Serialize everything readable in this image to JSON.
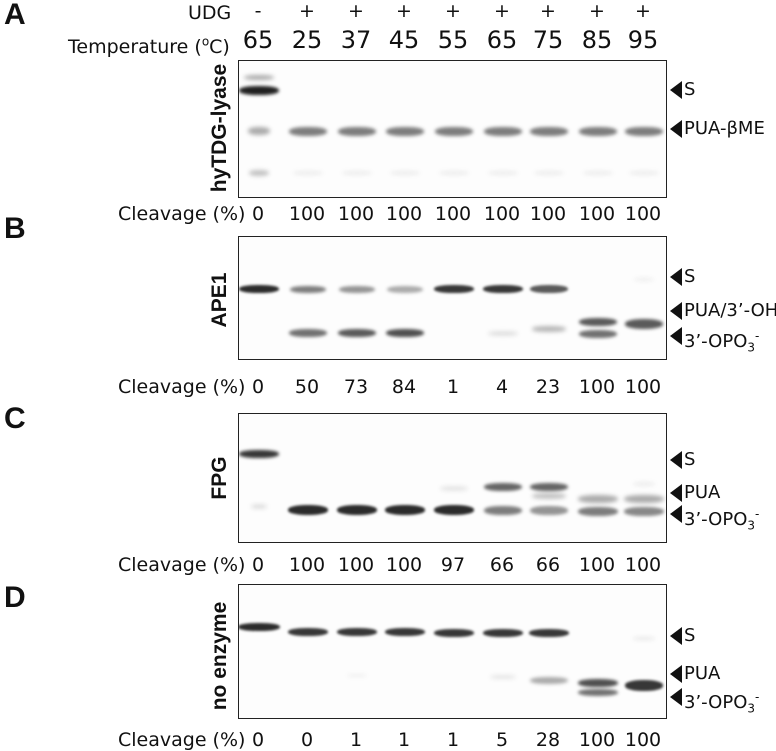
{
  "panel_letters": [
    "A",
    "B",
    "C",
    "D"
  ],
  "header": {
    "udg_label": "UDG",
    "udg_values": [
      "-",
      "+",
      "+",
      "+",
      "+",
      "+",
      "+",
      "+",
      "+"
    ],
    "temp_label": "Temperature (°C)",
    "temperatures": [
      "65",
      "25",
      "37",
      "45",
      "55",
      "65",
      "75",
      "85",
      "95"
    ]
  },
  "cleavage_label": "Cleavage (%)",
  "panels": [
    {
      "name": "hyTDG-lyase",
      "cleavage": [
        "0",
        "100",
        "100",
        "100",
        "100",
        "100",
        "100",
        "100",
        "100"
      ],
      "markers": [
        "S",
        "PUA-βME"
      ]
    },
    {
      "name": "APE1",
      "cleavage": [
        "0",
        "50",
        "73",
        "84",
        "1",
        "4",
        "23",
        "100",
        "100"
      ],
      "markers": [
        "S",
        "PUA/3’-OH",
        "3’-OPO3-"
      ]
    },
    {
      "name": "FPG",
      "cleavage": [
        "0",
        "100",
        "100",
        "100",
        "97",
        "66",
        "66",
        "100",
        "100"
      ],
      "markers": [
        "S",
        "PUA",
        "3’-OPO3-"
      ]
    },
    {
      "name": "no enzyme",
      "cleavage": [
        "0",
        "0",
        "1",
        "1",
        "1",
        "5",
        "28",
        "100",
        "100"
      ],
      "markers": [
        "S",
        "PUA",
        "3’-OPO3-"
      ]
    }
  ]
}
